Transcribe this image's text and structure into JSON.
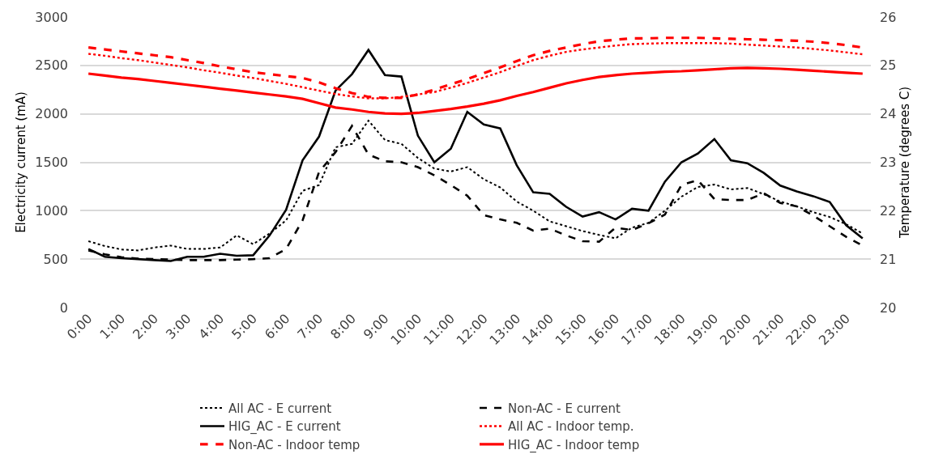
{
  "chart_data": {
    "type": "line",
    "xlabel": null,
    "ylabel": "Electricity current (mA)",
    "y2label": "Temperature (degrees C)",
    "categories": [
      "0:00",
      null,
      "1:00",
      null,
      "2:00",
      null,
      "3:00",
      null,
      "4:00",
      null,
      "5:00",
      null,
      "6:00",
      null,
      "7:00",
      null,
      "8:00",
      null,
      "9:00",
      null,
      "10:00",
      null,
      "11:00",
      null,
      "12:00",
      null,
      "13:00",
      null,
      "14:00",
      null,
      "15:00",
      null,
      "16:00",
      null,
      "17:00",
      null,
      "18:00",
      null,
      "19:00",
      null,
      "20:00",
      null,
      "21:00",
      null,
      "22:00",
      null,
      "23:00",
      null
    ],
    "ylim": [
      0,
      3000
    ],
    "yticks": [
      0,
      500,
      1000,
      1500,
      2000,
      2500,
      3000
    ],
    "y2lim": [
      20,
      26
    ],
    "y2ticks": [
      20,
      21,
      22,
      23,
      24,
      25,
      26
    ],
    "grid": "y",
    "legend": "bottom",
    "marker": "none",
    "series": [
      {
        "name": "All AC - E current",
        "color": "#000000",
        "line_style": "dotted",
        "values": [
          685,
          635,
          600,
          590,
          620,
          640,
          605,
          605,
          620,
          745,
          655,
          765,
          900,
          1205,
          1265,
          1655,
          1690,
          1930,
          1730,
          1690,
          1545,
          1435,
          1405,
          1450,
          1325,
          1240,
          1095,
          1000,
          890,
          840,
          790,
          750,
          715,
          825,
          875,
          1000,
          1145,
          1245,
          1270,
          1220,
          1235,
          1170,
          1095,
          1045,
          985,
          935,
          860,
          765
        ]
      },
      {
        "name": "Non-AC - E current",
        "color": "#000000",
        "line_style": "dashed",
        "values": [
          590,
          550,
          520,
          505,
          500,
          495,
          490,
          490,
          490,
          495,
          500,
          510,
          605,
          900,
          1400,
          1605,
          1875,
          1580,
          1510,
          1500,
          1450,
          1365,
          1265,
          1155,
          955,
          910,
          875,
          795,
          815,
          745,
          685,
          680,
          825,
          800,
          870,
          960,
          1265,
          1315,
          1120,
          1110,
          1110,
          1180,
          1080,
          1045,
          950,
          840,
          730,
          640
        ]
      },
      {
        "name": "HIG_AC - E current",
        "color": "#000000",
        "line_style": "solid",
        "values": [
          605,
          525,
          510,
          500,
          490,
          480,
          525,
          525,
          555,
          535,
          540,
          745,
          1010,
          1520,
          1765,
          2240,
          2410,
          2660,
          2400,
          2385,
          1775,
          1500,
          1640,
          2020,
          1890,
          1850,
          1470,
          1190,
          1175,
          1040,
          940,
          985,
          910,
          1020,
          1000,
          1300,
          1500,
          1590,
          1740,
          1520,
          1490,
          1390,
          1260,
          1200,
          1150,
          1090,
          850,
          715
        ]
      },
      {
        "name": "All AC - Indoor temp.",
        "color": "#ff0000",
        "line_style": "dotted",
        "axis": "y2",
        "values": [
          25.24,
          25.2,
          25.15,
          25.11,
          25.06,
          25.01,
          24.96,
          24.9,
          24.85,
          24.79,
          24.74,
          24.68,
          24.62,
          24.55,
          24.48,
          24.41,
          24.36,
          24.32,
          24.32,
          24.35,
          24.4,
          24.45,
          24.54,
          24.64,
          24.75,
          24.86,
          24.99,
          25.11,
          25.2,
          25.28,
          25.33,
          25.37,
          25.41,
          25.44,
          25.45,
          25.46,
          25.46,
          25.46,
          25.46,
          25.45,
          25.43,
          25.41,
          25.39,
          25.37,
          25.34,
          25.31,
          25.27,
          25.23
        ]
      },
      {
        "name": "Non-AC - Indoor temp",
        "color": "#ff0000",
        "line_style": "dashed",
        "axis": "y2",
        "values": [
          25.37,
          25.33,
          25.29,
          25.25,
          25.21,
          25.17,
          25.11,
          25.05,
          24.98,
          24.92,
          24.86,
          24.82,
          24.78,
          24.74,
          24.65,
          24.53,
          24.43,
          24.35,
          24.33,
          24.33,
          24.4,
          24.5,
          24.61,
          24.72,
          24.84,
          24.96,
          25.09,
          25.21,
          25.3,
          25.37,
          25.44,
          25.5,
          25.53,
          25.56,
          25.56,
          25.57,
          25.57,
          25.57,
          25.56,
          25.55,
          25.54,
          25.53,
          25.52,
          25.51,
          25.49,
          25.46,
          25.42,
          25.37
        ]
      },
      {
        "name": "HIG_AC - Indoor temp",
        "color": "#ff0000",
        "line_style": "solid",
        "axis": "y2",
        "values": [
          24.83,
          24.79,
          24.75,
          24.72,
          24.68,
          24.64,
          24.6,
          24.56,
          24.52,
          24.48,
          24.44,
          24.4,
          24.36,
          24.31,
          24.22,
          24.13,
          24.09,
          24.04,
          24.01,
          24.0,
          24.02,
          24.06,
          24.1,
          24.15,
          24.21,
          24.28,
          24.37,
          24.45,
          24.54,
          24.63,
          24.7,
          24.76,
          24.8,
          24.83,
          24.85,
          24.87,
          24.88,
          24.9,
          24.92,
          24.94,
          24.95,
          24.94,
          24.93,
          24.91,
          24.89,
          24.87,
          24.85,
          24.83
        ]
      }
    ]
  }
}
